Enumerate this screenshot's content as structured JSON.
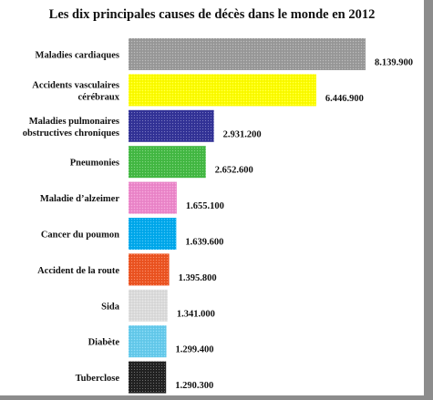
{
  "chart_data": {
    "type": "bar",
    "orientation": "horizontal",
    "title": "Les dix principales causes de décès dans le monde en 2012",
    "xlim": [
      0,
      8139900
    ],
    "grid": false,
    "legend": "none",
    "categories": [
      [
        "Maladies cardiaques"
      ],
      [
        "Accidents vasculaires",
        "cérébraux"
      ],
      [
        "Maladies pulmonaires",
        "obstructives chroniques"
      ],
      [
        "Pneumonies"
      ],
      [
        "Maladie d’alzeimer"
      ],
      [
        "Cancer du poumon"
      ],
      [
        "Accident de la route"
      ],
      [
        "Sida"
      ],
      [
        "Diabète"
      ],
      [
        "Tuberclose"
      ]
    ],
    "values": [
      8139900,
      6446900,
      2931200,
      2652600,
      1655100,
      1639600,
      1395800,
      1341000,
      1299400,
      1290300
    ],
    "value_labels": [
      "8.139.900",
      "6.446.900",
      "2.931.200",
      "2.652.600",
      "1.655.100",
      "1.639.600",
      "1.395.800",
      "1.341.000",
      "1.299.400",
      "1.290.300"
    ],
    "colors": [
      "#9b9b9b",
      "#ffff00",
      "#333399",
      "#44bb44",
      "#ee88cc",
      "#00aaee",
      "#ee5522",
      "#dddddd",
      "#66ccee",
      "#222222"
    ]
  }
}
